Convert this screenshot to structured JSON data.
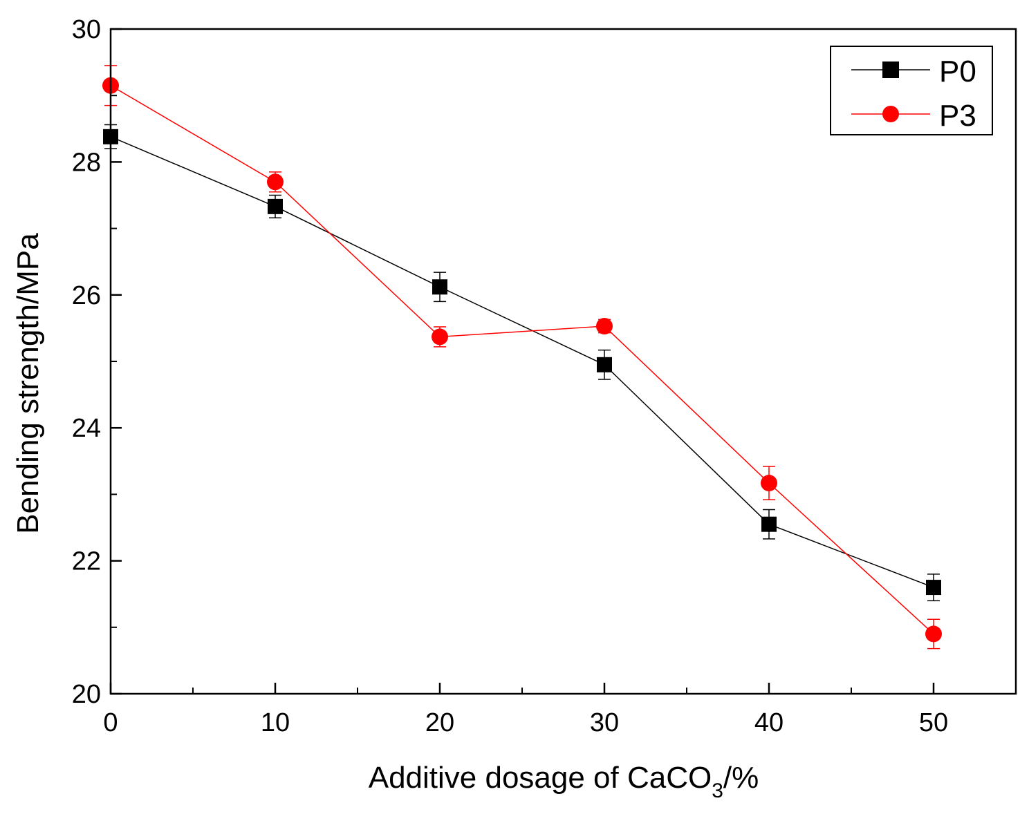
{
  "chart_data": {
    "type": "line",
    "title": "",
    "xlabel": "Additive dosage of CaCO₃/%",
    "xlabel_parts": {
      "main": "Additive dosage of CaCO",
      "sub": "3",
      "tail": "/%"
    },
    "ylabel": "Bending strength/MPa",
    "xlim": [
      0,
      55
    ],
    "ylim": [
      20,
      30
    ],
    "x_ticks": [
      0,
      10,
      20,
      30,
      40,
      50
    ],
    "x_tick_labels": [
      "0",
      "10",
      "20",
      "30",
      "40",
      "50"
    ],
    "y_ticks": [
      20,
      22,
      24,
      26,
      28,
      30
    ],
    "y_tick_labels": [
      "20",
      "22",
      "24",
      "26",
      "28",
      "30"
    ],
    "x_minor_ticks": [
      5,
      15,
      25,
      35,
      45
    ],
    "y_minor_ticks": [
      21,
      23,
      25,
      27,
      29
    ],
    "grid": false,
    "legend_position": "top-right",
    "series": [
      {
        "name": "P0",
        "color": "#000000",
        "marker": "square",
        "x": [
          0,
          10,
          20,
          30,
          40,
          50
        ],
        "y": [
          28.38,
          27.33,
          26.12,
          24.95,
          22.55,
          21.6
        ],
        "error": [
          0.18,
          0.17,
          0.22,
          0.22,
          0.22,
          0.2
        ]
      },
      {
        "name": "P3",
        "color": "#ff0000",
        "marker": "circle",
        "x": [
          0,
          10,
          20,
          30,
          40,
          50
        ],
        "y": [
          29.15,
          27.7,
          25.37,
          25.53,
          23.17,
          20.9
        ],
        "error": [
          0.3,
          0.15,
          0.15,
          0.1,
          0.25,
          0.22
        ]
      }
    ]
  }
}
